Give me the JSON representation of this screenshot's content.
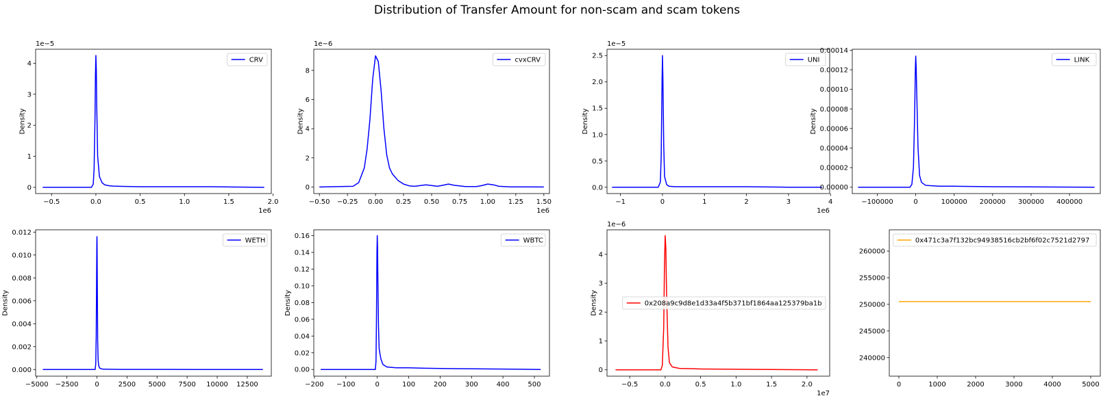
{
  "title": "Distribution of Transfer Amount for non-scam and scam tokens",
  "chart_data": [
    {
      "type": "line",
      "legend": "CRV",
      "color": "#0000ff",
      "ylabel": "Density",
      "y_offset": "1e−5",
      "x_offset": "1e6",
      "xlim": [
        -0.68,
        1.98
      ],
      "ylim": [
        -0.2,
        4.45
      ],
      "xticks": [
        -0.5,
        0.0,
        0.5,
        1.0,
        1.5,
        2.0
      ],
      "xtick_labels": [
        "−0.5",
        "0.0",
        "0.5",
        "1.0",
        "1.5",
        "2.0"
      ],
      "yticks": [
        0,
        1,
        2,
        3,
        4
      ],
      "ytick_labels": [
        "0",
        "1",
        "2",
        "3",
        "4"
      ],
      "series": [
        {
          "x": [
            -0.6,
            -0.05,
            -0.03,
            -0.02,
            -0.01,
            -0.005,
            0.0,
            0.005,
            0.01,
            0.02,
            0.04,
            0.07,
            0.1,
            0.15,
            0.2,
            0.3,
            0.5,
            1.0,
            1.3,
            1.6,
            1.9
          ],
          "y": [
            0,
            0,
            0.1,
            0.6,
            2.2,
            3.6,
            4.25,
            3.8,
            2.6,
            1.0,
            0.35,
            0.15,
            0.08,
            0.05,
            0.04,
            0.03,
            0.02,
            0.02,
            0.02,
            0.01,
            0
          ]
        }
      ]
    },
    {
      "type": "line",
      "legend": "cvxCRV",
      "color": "#0000ff",
      "ylabel": "Density",
      "y_offset": "1e−6",
      "x_offset": "1e6",
      "xlim": [
        -0.55,
        1.55
      ],
      "ylim": [
        -0.45,
        9.45
      ],
      "xticks": [
        -0.5,
        -0.25,
        0.0,
        0.25,
        0.5,
        0.75,
        1.0,
        1.25,
        1.5
      ],
      "xtick_labels": [
        "−0.50",
        "−0.25",
        "0.00",
        "0.25",
        "0.50",
        "0.75",
        "1.00",
        "1.25",
        "1.50"
      ],
      "yticks": [
        0,
        2,
        4,
        6,
        8
      ],
      "ytick_labels": [
        "0",
        "2",
        "4",
        "6",
        "8"
      ],
      "series": [
        {
          "x": [
            -0.5,
            -0.2,
            -0.15,
            -0.1,
            -0.075,
            -0.05,
            -0.025,
            0.0,
            0.025,
            0.05,
            0.075,
            0.1,
            0.125,
            0.15,
            0.2,
            0.25,
            0.3,
            0.35,
            0.4,
            0.45,
            0.5,
            0.55,
            0.6,
            0.65,
            0.7,
            0.8,
            0.9,
            0.95,
            1.0,
            1.05,
            1.1,
            1.2,
            1.5
          ],
          "y": [
            0,
            0.05,
            0.3,
            1.3,
            2.6,
            4.6,
            7.4,
            9.0,
            8.6,
            6.6,
            4.0,
            2.2,
            1.3,
            0.9,
            0.45,
            0.2,
            0.08,
            0.05,
            0.1,
            0.15,
            0.1,
            0.05,
            0.12,
            0.2,
            0.12,
            0.03,
            0.03,
            0.1,
            0.2,
            0.15,
            0.05,
            0.01,
            0
          ]
        }
      ]
    },
    {
      "type": "line",
      "legend": "UNI",
      "color": "#0000ff",
      "ylabel": "Density",
      "y_offset": "1e−5",
      "x_offset": "1e6",
      "xlim": [
        -1.32,
        3.98
      ],
      "ylim": [
        -0.12,
        2.62
      ],
      "xticks": [
        -1,
        0,
        1,
        2,
        3,
        4
      ],
      "xtick_labels": [
        "−1",
        "0",
        "1",
        "2",
        "3",
        "4"
      ],
      "yticks": [
        0.0,
        0.5,
        1.0,
        1.5,
        2.0,
        2.5
      ],
      "ytick_labels": [
        "0.0",
        "0.5",
        "1.0",
        "1.5",
        "2.0",
        "2.5"
      ],
      "series": [
        {
          "x": [
            -1.2,
            -0.1,
            -0.05,
            -0.03,
            -0.01,
            0.0,
            0.01,
            0.03,
            0.05,
            0.1,
            0.15,
            0.3,
            1.0,
            2.0,
            3.0,
            3.8
          ],
          "y": [
            0,
            0,
            0.1,
            0.6,
            2.0,
            2.5,
            2.1,
            0.8,
            0.2,
            0.05,
            0.02,
            0.01,
            0.01,
            0.01,
            0,
            0
          ]
        }
      ]
    },
    {
      "type": "line",
      "legend": "LINK",
      "color": "#0000ff",
      "ylabel": "Density",
      "y_offset": "",
      "x_offset": "",
      "xlim": [
        -165000,
        480000
      ],
      "ylim": [
        -6.5e-06,
        0.000141
      ],
      "xticks": [
        -100000,
        0,
        100000,
        200000,
        300000,
        400000
      ],
      "xtick_labels": [
        "−100000",
        "0",
        "100000",
        "200000",
        "300000",
        "400000"
      ],
      "yticks": [
        0,
        2e-05,
        4e-05,
        6e-05,
        8e-05,
        0.0001,
        0.00012,
        0.00014
      ],
      "ytick_labels": [
        "0.00000",
        "0.00002",
        "0.00004",
        "0.00006",
        "0.00008",
        "0.00010",
        "0.00012",
        "0.00014"
      ],
      "series": [
        {
          "x": [
            -150000,
            -15000,
            -10000,
            -6000,
            -3000,
            -1000,
            0,
            1000,
            3000,
            6000,
            10000,
            15000,
            25000,
            40000,
            60000,
            100000,
            200000,
            300000,
            465000
          ],
          "y": [
            0,
            0,
            3e-06,
            2e-05,
            7e-05,
            0.00012,
            0.000134,
            0.000125,
            9e-05,
            4e-05,
            1.2e-05,
            5e-06,
            2e-06,
            1.5e-06,
            1e-06,
            1e-06,
            5e-07,
            3e-07,
            0
          ]
        }
      ]
    },
    {
      "type": "line",
      "legend": "WETH",
      "color": "#0000ff",
      "ylabel": "Density",
      "y_offset": "",
      "x_offset": "",
      "xlim": [
        -5100,
        14500
      ],
      "ylim": [
        -0.00058,
        0.0122
      ],
      "xticks": [
        -5000,
        -2500,
        0,
        2500,
        5000,
        7500,
        10000,
        12500
      ],
      "xtick_labels": [
        "−5000",
        "−2500",
        "0",
        "2500",
        "5000",
        "7500",
        "10000",
        "12500"
      ],
      "yticks": [
        0,
        0.002,
        0.004,
        0.006,
        0.008,
        0.01,
        0.012
      ],
      "ytick_labels": [
        "0.000",
        "0.002",
        "0.004",
        "0.006",
        "0.008",
        "0.010",
        "0.012"
      ],
      "series": [
        {
          "x": [
            -4500,
            -150,
            -100,
            -60,
            -30,
            -10,
            0,
            10,
            30,
            60,
            100,
            150,
            250,
            500,
            2000,
            8000,
            13800
          ],
          "y": [
            0,
            0,
            0.0005,
            0.003,
            0.008,
            0.011,
            0.0116,
            0.011,
            0.0075,
            0.0025,
            0.0008,
            0.0003,
            0.0001,
            3e-05,
            1e-05,
            5e-06,
            0
          ]
        }
      ]
    },
    {
      "type": "line",
      "legend": "WBTC",
      "color": "#0000ff",
      "ylabel": "Density",
      "y_offset": "",
      "x_offset": "",
      "xlim": [
        -202,
        548
      ],
      "ylim": [
        -0.008,
        0.167
      ],
      "xticks": [
        -200,
        -100,
        0,
        100,
        200,
        300,
        400,
        500
      ],
      "xtick_labels": [
        "−200",
        "−100",
        "0",
        "100",
        "200",
        "300",
        "400",
        "500"
      ],
      "yticks": [
        0,
        0.02,
        0.04,
        0.06,
        0.08,
        0.1,
        0.12,
        0.14,
        0.16
      ],
      "ytick_labels": [
        "0.00",
        "0.02",
        "0.04",
        "0.06",
        "0.08",
        "0.10",
        "0.12",
        "0.14",
        "0.16"
      ],
      "series": [
        {
          "x": [
            -180,
            -6,
            -4,
            -2.5,
            -1,
            0,
            1,
            2.5,
            4,
            6,
            9,
            12,
            18,
            30,
            60,
            100,
            150,
            250,
            400,
            520
          ],
          "y": [
            0,
            0,
            0.01,
            0.06,
            0.14,
            0.16,
            0.145,
            0.09,
            0.05,
            0.025,
            0.018,
            0.012,
            0.006,
            0.003,
            0.002,
            0.002,
            0.0015,
            0.001,
            0.0005,
            0
          ]
        }
      ]
    },
    {
      "type": "line",
      "legend": "0x208a9c9d8e1d33a4f5b371bf1864aa125379ba1b",
      "color": "#ff0000",
      "ylabel": "Density",
      "y_offset": "1e−6",
      "x_offset": "1e7",
      "xlim": [
        -0.82,
        2.32
      ],
      "ylim": [
        -0.22,
        4.85
      ],
      "xticks": [
        -0.5,
        0.0,
        0.5,
        1.0,
        1.5,
        2.0
      ],
      "xtick_labels": [
        "−0.5",
        "0.0",
        "0.5",
        "1.0",
        "1.5",
        "2.0"
      ],
      "yticks": [
        0,
        1,
        2,
        3,
        4
      ],
      "ytick_labels": [
        "0",
        "1",
        "2",
        "3",
        "4"
      ],
      "series": [
        {
          "x": [
            -0.7,
            -0.06,
            -0.04,
            -0.02,
            -0.01,
            0.0,
            0.01,
            0.02,
            0.04,
            0.06,
            0.1,
            0.2,
            0.5,
            1.0,
            1.5,
            2.15
          ],
          "y": [
            0,
            0,
            0.15,
            1.5,
            3.6,
            4.65,
            4.2,
            2.6,
            0.8,
            0.25,
            0.1,
            0.05,
            0.03,
            0.02,
            0.01,
            0
          ]
        }
      ]
    },
    {
      "type": "line",
      "legend": "0x471c3a7f132bc94938516cb2bf6f02c7521d2797",
      "color": "#ffa500",
      "ylabel": "",
      "y_offset": "",
      "x_offset": "",
      "xlim": [
        -250,
        5250
      ],
      "ylim": [
        236500,
        264000
      ],
      "xticks": [
        0,
        1000,
        2000,
        3000,
        4000,
        5000
      ],
      "xtick_labels": [
        "0",
        "1000",
        "2000",
        "3000",
        "4000",
        "5000"
      ],
      "yticks": [
        240000,
        245000,
        250000,
        255000,
        260000
      ],
      "ytick_labels": [
        "240000",
        "245000",
        "250000",
        "255000",
        "260000"
      ],
      "series": [
        {
          "x": [
            0,
            5000
          ],
          "y": [
            250500,
            250500
          ]
        }
      ]
    }
  ]
}
